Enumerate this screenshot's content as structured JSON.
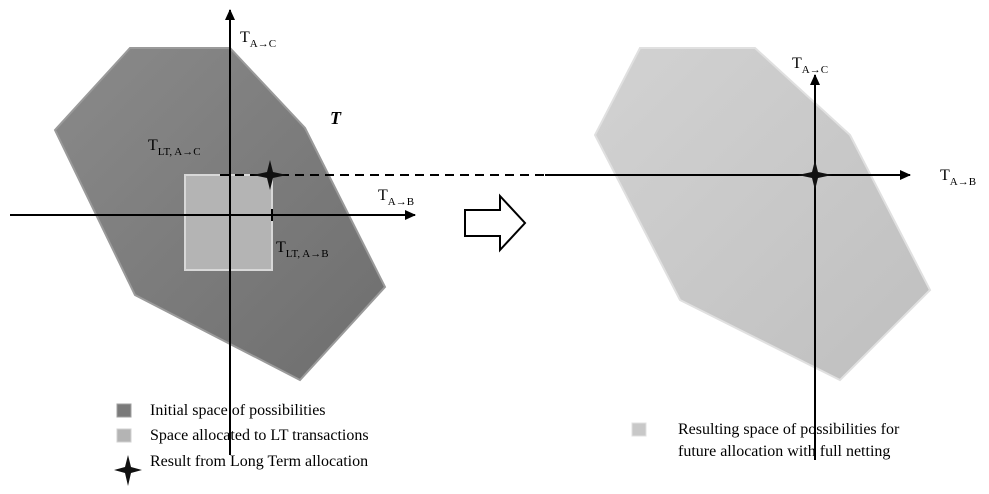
{
  "left": {
    "axis_y_label": {
      "main": "T",
      "sub": "A→C"
    },
    "axis_x_label": {
      "main": "T",
      "sub": "A→B"
    },
    "lt_y_label": {
      "main": "T",
      "sub": "LT, A→C"
    },
    "lt_x_label": {
      "main": "T",
      "sub": "LT, A→B"
    },
    "space_label": "T"
  },
  "right": {
    "axis_y_label": {
      "main": "T",
      "sub": "A→C"
    },
    "axis_x_label": {
      "main": "T",
      "sub": "A→B"
    }
  },
  "legend_left": [
    "Initial space of possibilities",
    "Space allocated to LT transactions",
    "Result from Long Term allocation"
  ],
  "legend_right": [
    "Resulting space of possibilities for",
    "future allocation with full netting"
  ]
}
